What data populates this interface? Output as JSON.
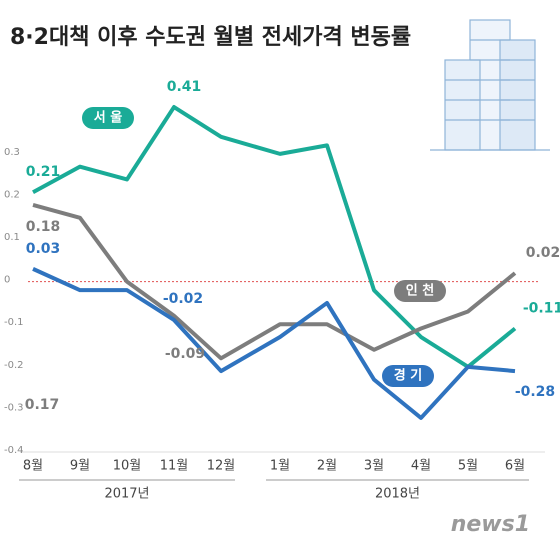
{
  "chart_data": {
    "type": "line",
    "title": "8·2대책 이후 수도권 월별 전세가격 변동률",
    "categories": [
      "8월",
      "9월",
      "10월",
      "11월",
      "12월",
      "1월",
      "2월",
      "3월",
      "4월",
      "5월",
      "6월"
    ],
    "x_groups": [
      {
        "label": "2017년",
        "count": 5
      },
      {
        "label": "2018년",
        "count": 6
      }
    ],
    "series": [
      {
        "name": "서 울",
        "color": "#1aab97",
        "values": [
          0.21,
          0.27,
          0.24,
          0.41,
          0.34,
          0.3,
          0.32,
          -0.02,
          -0.13,
          -0.2,
          -0.11
        ],
        "value_labels": [
          "0.21",
          null,
          null,
          "0.41",
          null,
          null,
          null,
          null,
          null,
          null,
          "-0.11"
        ]
      },
      {
        "name": "인 천",
        "color": "#7d7d7d",
        "values": [
          0.18,
          0.15,
          0.0,
          -0.08,
          -0.18,
          -0.1,
          -0.1,
          -0.16,
          -0.11,
          -0.07,
          0.02
        ],
        "value_labels": [
          "0.18",
          null,
          null,
          null,
          null,
          null,
          null,
          null,
          null,
          null,
          "0.02"
        ]
      },
      {
        "name": "경 기",
        "color": "#2f73bf",
        "values": [
          0.03,
          -0.02,
          -0.02,
          -0.09,
          -0.21,
          -0.13,
          -0.05,
          -0.23,
          -0.32,
          -0.2,
          -0.21
        ],
        "value_labels": [
          "0.03",
          null,
          null,
          null,
          null,
          null,
          null,
          null,
          null,
          null,
          null
        ]
      }
    ],
    "annotations": [
      "-0.02",
      "-0.09",
      "0.17",
      "-0.28"
    ],
    "ylim": [
      -0.4,
      0.45
    ],
    "yticks": [
      0.3,
      0.2,
      0.1,
      0,
      -0.1,
      -0.2,
      -0.3,
      -0.4
    ],
    "zero_line": true,
    "source": "news1"
  }
}
